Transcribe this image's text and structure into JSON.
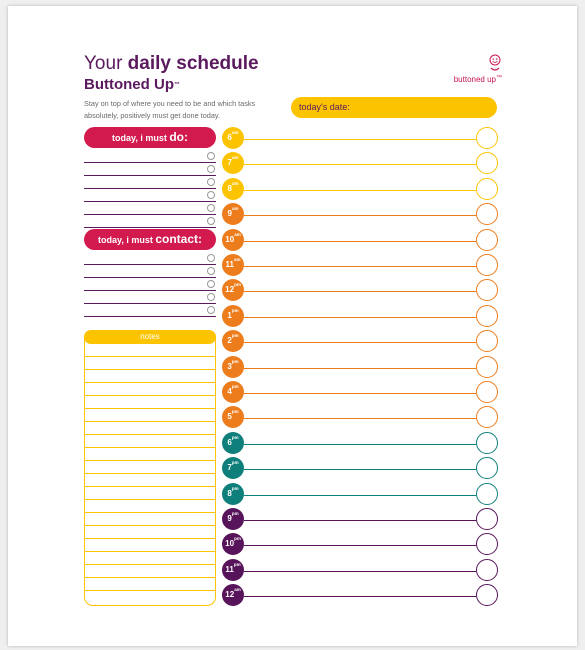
{
  "header": {
    "title_prefix": "Your",
    "title_bold": "daily schedule",
    "subtitle": "Buttoned Up",
    "trademark": "™",
    "intro": "Stay on top of where you need to be and which tasks absolutely, positively must get done today."
  },
  "logo": {
    "text": "buttoned up",
    "trademark": "™",
    "icon": "smiley-button-icon"
  },
  "date": {
    "label": "today's date:"
  },
  "todo": {
    "label_prefix": "today, i must ",
    "label_bold": "do:",
    "rows": 6
  },
  "contact": {
    "label_prefix": "today, i must ",
    "label_bold": "contact:",
    "rows": 5
  },
  "notes": {
    "label": "notes"
  },
  "colors": {
    "plum": "#5b1a5e",
    "magenta": "#d21a4e",
    "yellow": "#fcc400",
    "orange": "#ed7d1c",
    "teal": "#0e7f7a",
    "purple": "#57145a"
  },
  "hours": [
    {
      "hour": "6",
      "period": "am",
      "color": "#fcc400"
    },
    {
      "hour": "7",
      "period": "am",
      "color": "#fcc400"
    },
    {
      "hour": "8",
      "period": "am",
      "color": "#fcc400"
    },
    {
      "hour": "9",
      "period": "am",
      "color": "#ed7d1c"
    },
    {
      "hour": "10",
      "period": "am",
      "color": "#ed7d1c"
    },
    {
      "hour": "11",
      "period": "am",
      "color": "#ed7d1c"
    },
    {
      "hour": "12",
      "period": "pm",
      "color": "#ed7d1c"
    },
    {
      "hour": "1",
      "period": "pm",
      "color": "#ed7d1c"
    },
    {
      "hour": "2",
      "period": "pm",
      "color": "#ed7d1c"
    },
    {
      "hour": "3",
      "period": "pm",
      "color": "#ed7d1c"
    },
    {
      "hour": "4",
      "period": "pm",
      "color": "#ed7d1c"
    },
    {
      "hour": "5",
      "period": "pm",
      "color": "#ed7d1c"
    },
    {
      "hour": "6",
      "period": "pm",
      "color": "#0e7f7a"
    },
    {
      "hour": "7",
      "period": "pm",
      "color": "#0e7f7a"
    },
    {
      "hour": "8",
      "period": "pm",
      "color": "#0e7f7a"
    },
    {
      "hour": "9",
      "period": "pm",
      "color": "#57145a"
    },
    {
      "hour": "10",
      "period": "pm",
      "color": "#57145a"
    },
    {
      "hour": "11",
      "period": "pm",
      "color": "#57145a"
    },
    {
      "hour": "12",
      "period": "am",
      "color": "#57145a"
    }
  ]
}
